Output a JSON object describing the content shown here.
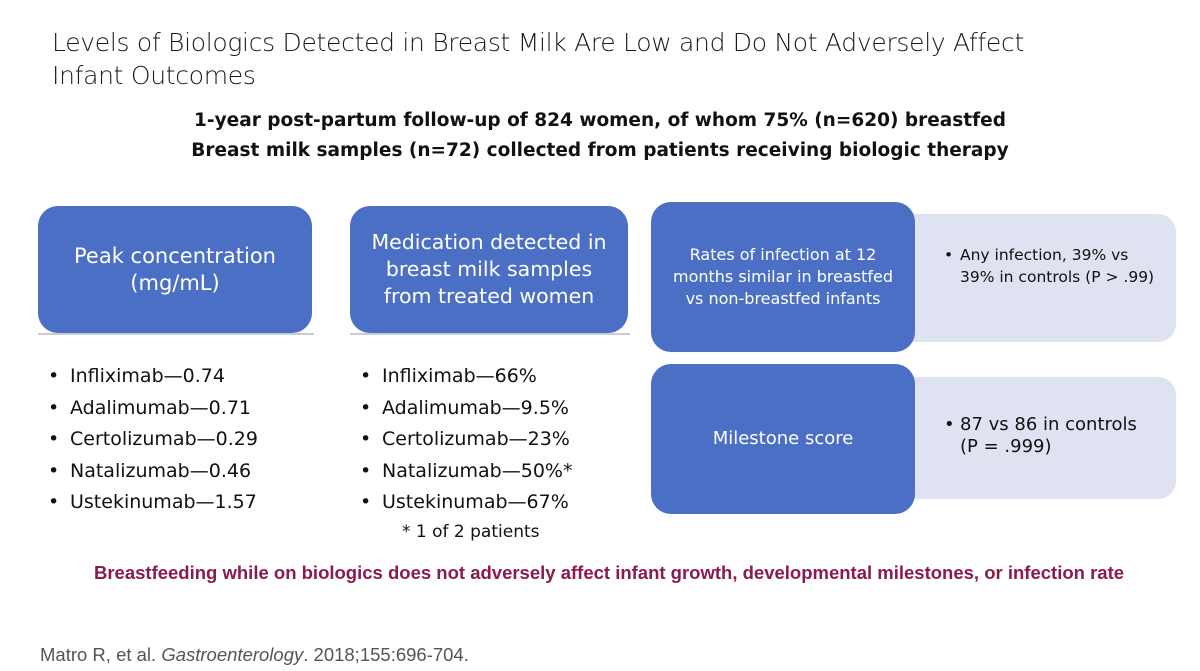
{
  "slide": {
    "title": "Levels of Biologics Detected in Breast Milk Are Low and Do Not Adversely Affect Infant Outcomes",
    "subtitle_line1": "1-year post-partum follow-up of 824 women, of whom 75% (n=620) breastfed",
    "subtitle_line2": "Breast milk samples (n=72) collected from patients receiving biologic therapy"
  },
  "peak": {
    "header": "Peak concentration (mg/mL)",
    "items": [
      "Infliximab—0.74",
      "Adalimumab—0.71",
      "Certolizumab—0.29",
      "Natalizumab—0.46",
      "Ustekinumab—1.57"
    ]
  },
  "detected": {
    "header": "Medication detected in breast milk samples from treated women",
    "items": [
      "Infliximab—66%",
      "Adalimumab—9.5%",
      "Certolizumab—23%",
      "Natalizumab—50%*",
      "Ustekinumab—67%"
    ],
    "footnote": "* 1 of 2 patients"
  },
  "infection": {
    "header": "Rates of infection at 12 months similar in breastfed vs non-breastfed infants",
    "detail": "Any infection, 39% vs 39% in controls (P > .99)"
  },
  "milestone": {
    "header": "Milestone score",
    "detail": "87 vs 86 in controls (P = .999)"
  },
  "conclusion": "Breastfeeding while on biologics does not adversely affect infant growth, developmental milestones, or infection rate",
  "citation": {
    "authors": "Matro R, et al. ",
    "journal": "Gastroenterology",
    "details": ". 2018;155:696-704."
  },
  "bullet": "•",
  "colors": {
    "header_box": "#4a6fc4",
    "detail_box": "#dfe2f0",
    "conclusion": "#8b1a4f"
  }
}
